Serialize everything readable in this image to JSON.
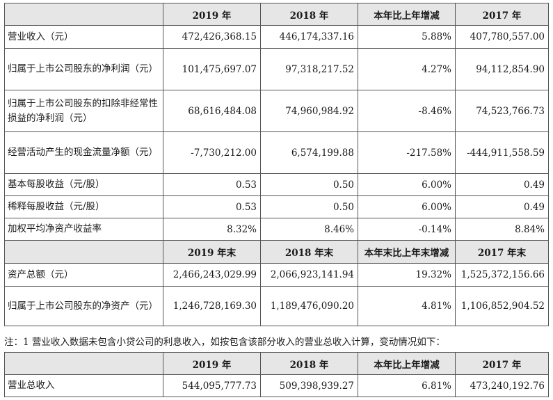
{
  "table1": {
    "header": [
      "",
      "2019 年",
      "2018 年",
      "本年比上年增减",
      "2017 年"
    ],
    "rows": [
      {
        "label": "营业收入（元）",
        "v2019": "472,426,368.15",
        "v2018": "446,174,337.16",
        "chg": "5.88%",
        "v2017": "407,780,557.00"
      },
      {
        "label": "归属于上市公司股东的净利润（元）",
        "v2019": "101,475,697.07",
        "v2018": "97,318,217.52",
        "chg": "4.27%",
        "v2017": "94,112,854.90"
      },
      {
        "label": "归属于上市公司股东的扣除非经常性损益的净利润（元）",
        "v2019": "68,616,484.08",
        "v2018": "74,960,984.92",
        "chg": "-8.46%",
        "v2017": "74,523,766.73"
      },
      {
        "label": "经营活动产生的现金流量净额（元）",
        "v2019": "-7,730,212.00",
        "v2018": "6,574,199.88",
        "chg": "-217.58%",
        "v2017": "-444,911,558.59"
      },
      {
        "label": "基本每股收益（元/股）",
        "v2019": "0.53",
        "v2018": "0.50",
        "chg": "6.00%",
        "v2017": "0.49"
      },
      {
        "label": "稀释每股收益（元/股）",
        "v2019": "0.53",
        "v2018": "0.50",
        "chg": "6.00%",
        "v2017": "0.49"
      },
      {
        "label": "加权平均净资产收益率",
        "v2019": "8.32%",
        "v2018": "8.46%",
        "chg": "-0.14%",
        "v2017": "8.84%"
      }
    ],
    "header2": [
      "",
      "2019 年末",
      "2018 年末",
      "本年末比上年末增减",
      "2017 年末"
    ],
    "rows2": [
      {
        "label": "资产总额（元）",
        "v2019": "2,466,243,029.99",
        "v2018": "2,066,923,141.94",
        "chg": "19.32%",
        "v2017": "1,525,372,156.66"
      },
      {
        "label": "归属于上市公司股东的净资产（元）",
        "v2019": "1,246,728,169.30",
        "v2018": "1,189,476,090.20",
        "chg": "4.81%",
        "v2017": "1,106,852,904.52"
      }
    ]
  },
  "note": "注：1 营业收入数据未包含小贷公司的利息收入，如按包含该部分收入的营业总收入计算，变动情况如下：",
  "table2": {
    "header": [
      "",
      "2019 年",
      "2018 年",
      "本年比上年增减",
      "2017 年"
    ],
    "rows": [
      {
        "label": "营业总收入",
        "v2019": "544,095,777.73",
        "v2018": "509,398,939.27",
        "chg": "6.81%",
        "v2017": "473,240,192.76"
      }
    ]
  }
}
